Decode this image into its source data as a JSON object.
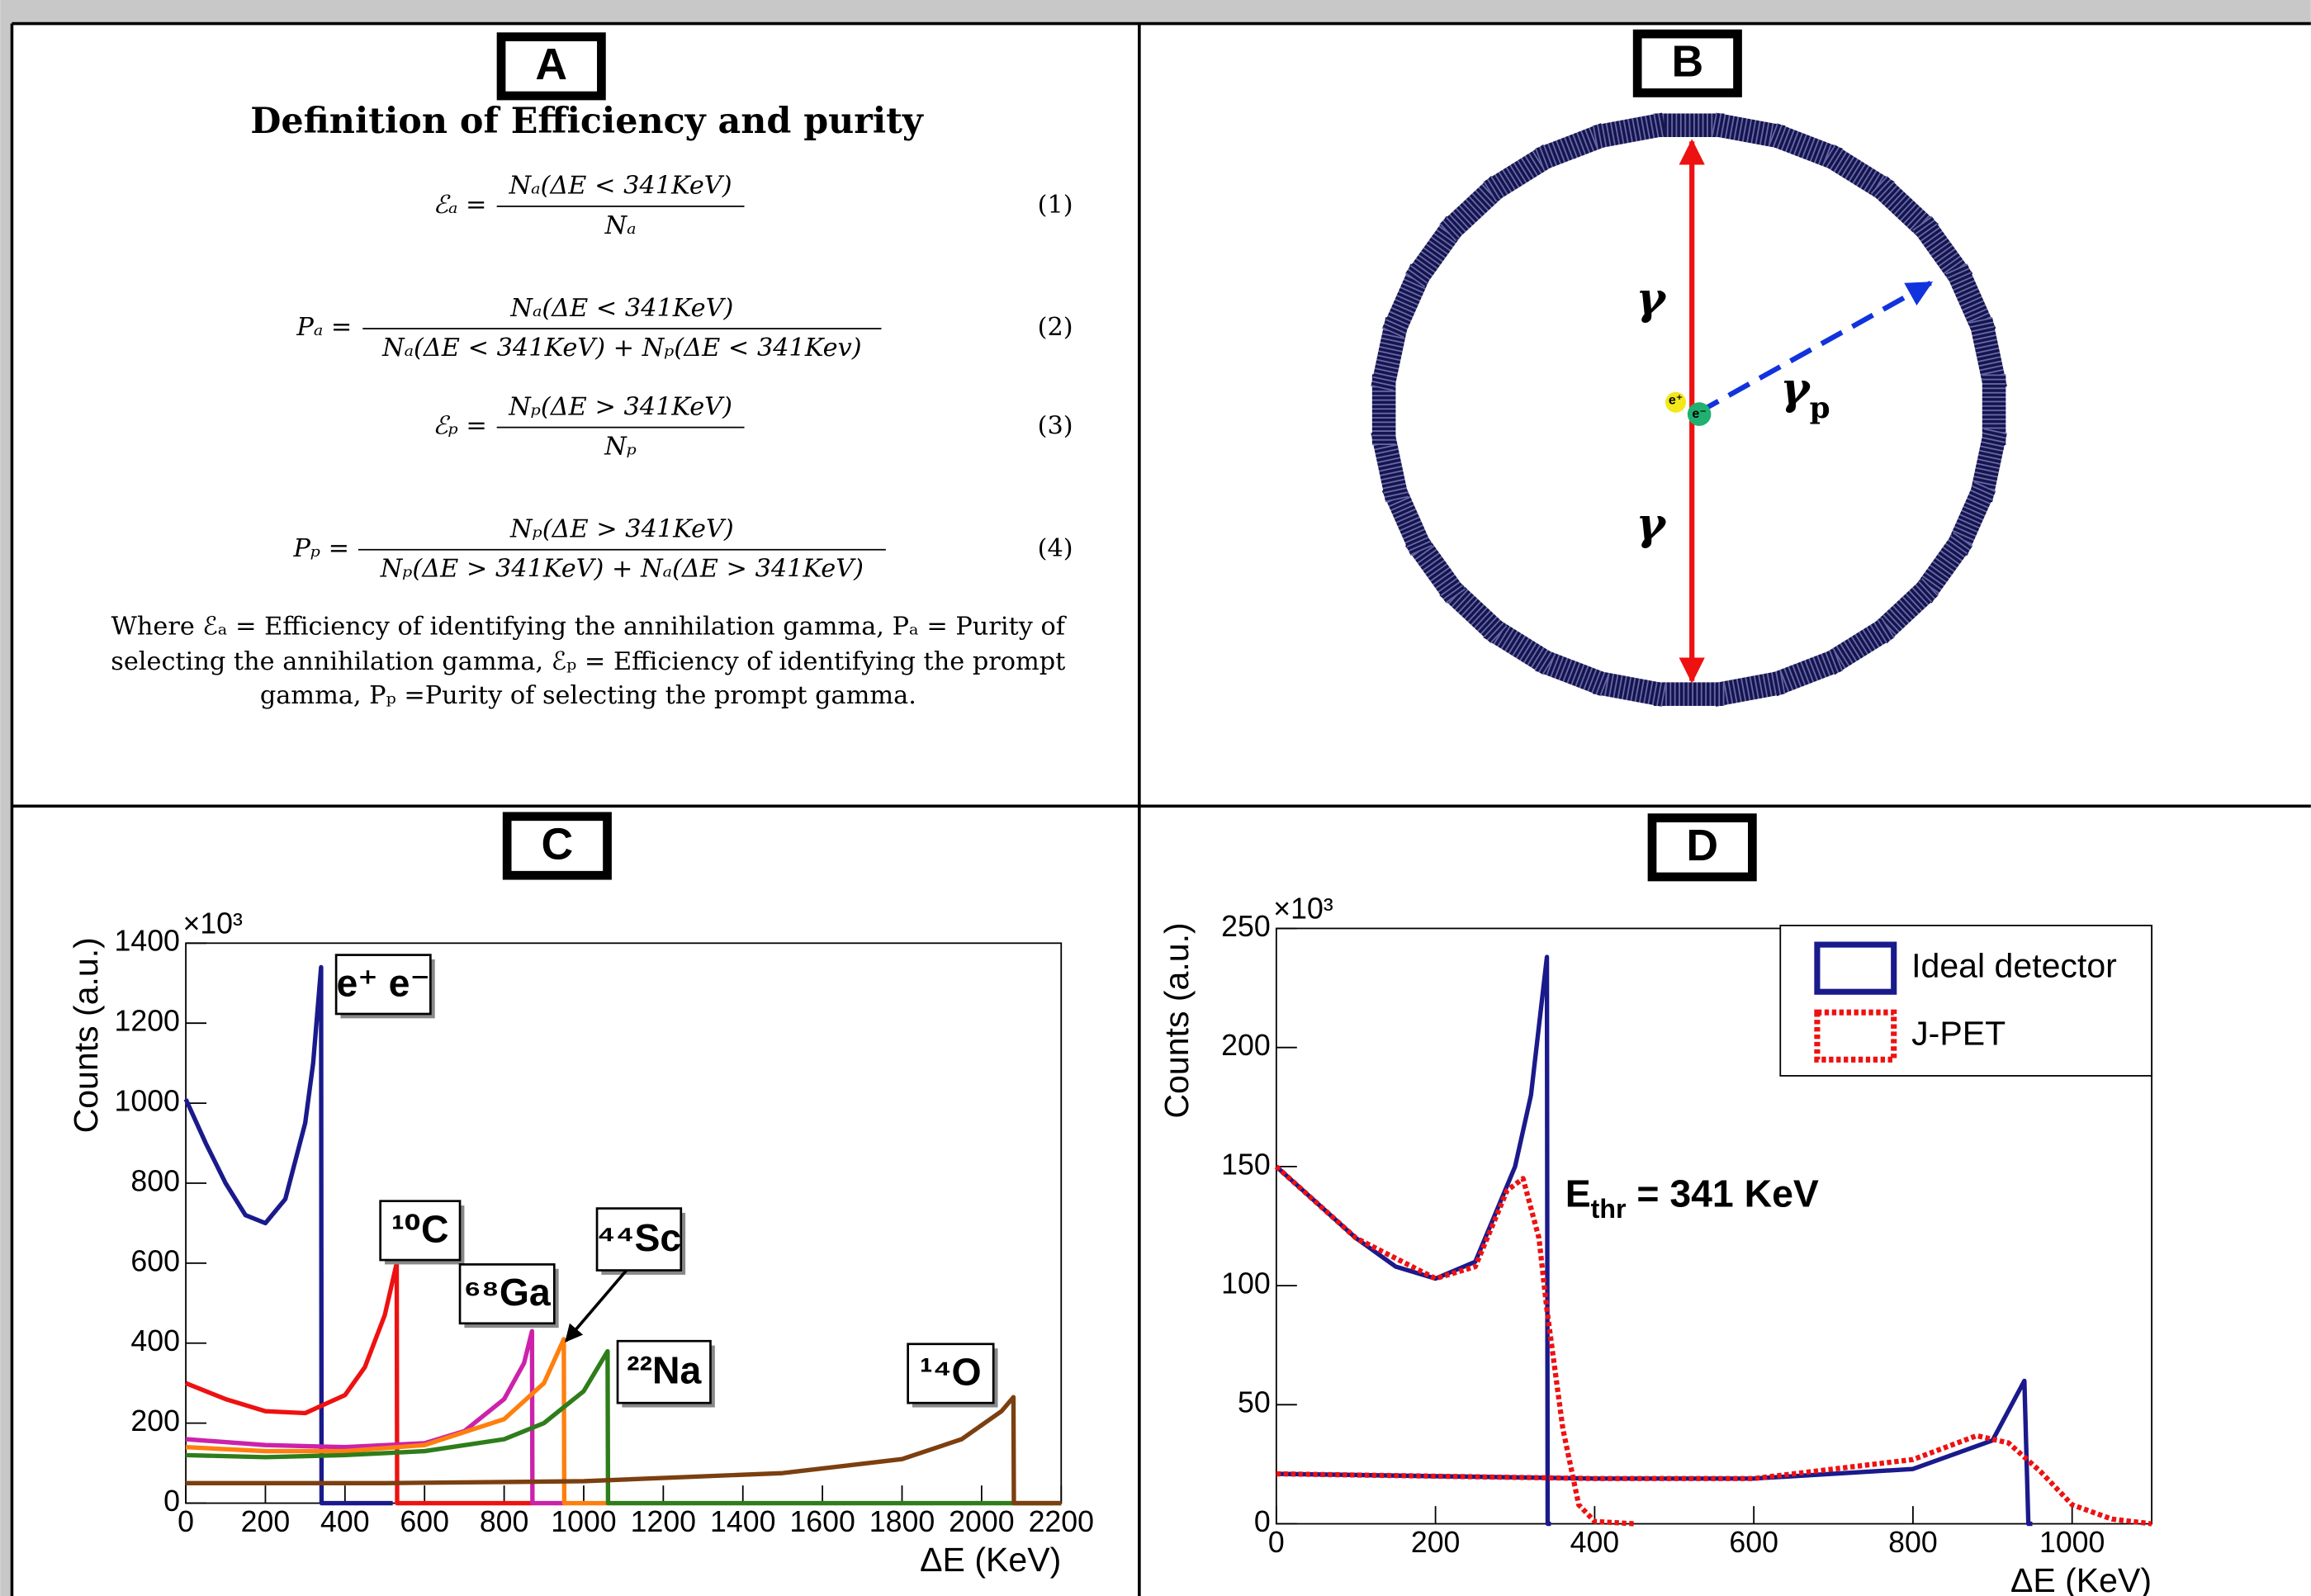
{
  "panel_labels": [
    "A",
    "B",
    "C",
    "D"
  ],
  "panel_a": {
    "title": "Definition of Efficiency and purity",
    "equations": [
      {
        "lhs": "ℰₐ =",
        "numerator": "Nₐ(ΔE < 341KeV)",
        "denominator": "Nₐ",
        "number": "(1)"
      },
      {
        "lhs": "Pₐ =",
        "numerator": "Nₐ(ΔE < 341KeV)",
        "denominator": "Nₐ(ΔE < 341KeV) + Nₚ(ΔE < 341Kev)",
        "number": "(2)"
      },
      {
        "lhs": "ℰₚ =",
        "numerator": "Nₚ(ΔE > 341KeV)",
        "denominator": "Nₚ",
        "number": "(3)"
      },
      {
        "lhs": "Pₚ =",
        "numerator": "Nₚ(ΔE > 341KeV)",
        "denominator": "Nₚ(ΔE > 341KeV) + Nₐ(ΔE > 341KeV)",
        "number": "(4)"
      }
    ],
    "description": [
      "Where ℰₐ = Efficiency of identifying the annihilation gamma, Pₐ = Purity of",
      "selecting the annihilation gamma, ℰₚ = Efficiency of identifying the prompt",
      "gamma, Pₚ =Purity of selecting the prompt gamma."
    ]
  },
  "panel_b": {
    "labels": {
      "gamma_top": "γ",
      "gamma_bottom": "γ",
      "gamma": "γ",
      "prompt_subscript": "p",
      "positron": "e⁺",
      "electron": "e⁻"
    }
  },
  "chart_data": [
    {
      "type": "line",
      "xlabel": "ΔE (KeV)",
      "ylabel": "Counts (a.u.)",
      "y_multiplier": "×10³",
      "xlim": [
        0,
        2200
      ],
      "ylim": [
        0,
        1400
      ],
      "xticks": [
        0,
        200,
        400,
        600,
        800,
        1000,
        1200,
        1400,
        1600,
        1800,
        2000,
        2200
      ],
      "yticks": [
        0,
        200,
        400,
        600,
        800,
        1000,
        1200,
        1400
      ],
      "series": [
        {
          "name": "e⁺ e⁻",
          "color": "#1a1a8c",
          "x": [
            0,
            50,
            100,
            150,
            200,
            250,
            300,
            320,
            340,
            341,
            520
          ],
          "values": [
            1010,
            900,
            800,
            720,
            700,
            760,
            950,
            1100,
            1340,
            0,
            0
          ]
        },
        {
          "name": "¹⁰C",
          "color": "#ee1111",
          "x": [
            0,
            100,
            200,
            300,
            400,
            450,
            500,
            530,
            531,
            870
          ],
          "values": [
            300,
            260,
            230,
            225,
            270,
            340,
            470,
            600,
            0,
            0
          ]
        },
        {
          "name": "⁶⁸Ga",
          "color": "#cc22aa",
          "x": [
            0,
            200,
            400,
            600,
            700,
            800,
            850,
            870,
            871,
            950
          ],
          "values": [
            160,
            145,
            140,
            150,
            180,
            260,
            350,
            430,
            0,
            0
          ]
        },
        {
          "name": "⁴⁴Sc",
          "color": "#ff7f0e",
          "x": [
            0,
            200,
            400,
            600,
            800,
            900,
            950,
            951,
            1060
          ],
          "values": [
            140,
            130,
            130,
            145,
            210,
            300,
            410,
            0,
            0
          ]
        },
        {
          "name": "²²Na",
          "color": "#2e7d1a",
          "x": [
            0,
            200,
            400,
            600,
            800,
            900,
            1000,
            1060,
            1061,
            2200
          ],
          "values": [
            120,
            115,
            120,
            130,
            160,
            200,
            280,
            380,
            0,
            0
          ]
        },
        {
          "name": "¹⁴O",
          "color": "#7b3f10",
          "x": [
            0,
            500,
            1000,
            1500,
            1800,
            1950,
            2050,
            2080,
            2081,
            2200
          ],
          "values": [
            50,
            50,
            55,
            75,
            110,
            160,
            230,
            265,
            0,
            0
          ]
        }
      ]
    },
    {
      "type": "line",
      "xlabel": "ΔE (KeV)",
      "ylabel": "Counts (a.u.)",
      "y_multiplier": "×10³",
      "xlim": [
        0,
        1100
      ],
      "ylim": [
        0,
        250
      ],
      "xticks": [
        0,
        200,
        400,
        600,
        800,
        1000
      ],
      "yticks": [
        0,
        50,
        100,
        150,
        200,
        250
      ],
      "legend": "top-right",
      "annotation": {
        "text": "E",
        "subscript": "thr",
        "text_after": " = 341 KeV"
      },
      "series": [
        {
          "name": "Ideal detector",
          "color": "#1a1a8c",
          "style": "solid",
          "x": [
            0,
            50,
            100,
            150,
            200,
            250,
            300,
            320,
            340,
            341,
            345,
            null,
            0,
            200,
            400,
            600,
            800,
            900,
            940,
            945,
            950
          ],
          "values": [
            150,
            135,
            120,
            108,
            103,
            110,
            150,
            180,
            238,
            0,
            0,
            null,
            21,
            20,
            19,
            19,
            23,
            35,
            60,
            0,
            0
          ]
        },
        {
          "name": "J-PET",
          "color": "#ee1111",
          "style": "dotted",
          "x": [
            0,
            100,
            200,
            250,
            290,
            310,
            330,
            340,
            360,
            380,
            400,
            450,
            null,
            0,
            200,
            400,
            600,
            800,
            880,
            920,
            960,
            1000,
            1050,
            1100
          ],
          "values": [
            150,
            120,
            103,
            108,
            140,
            145,
            120,
            90,
            40,
            8,
            1,
            0,
            null,
            21,
            20,
            19,
            19,
            27,
            37,
            34,
            22,
            8,
            2,
            0
          ]
        }
      ]
    }
  ]
}
